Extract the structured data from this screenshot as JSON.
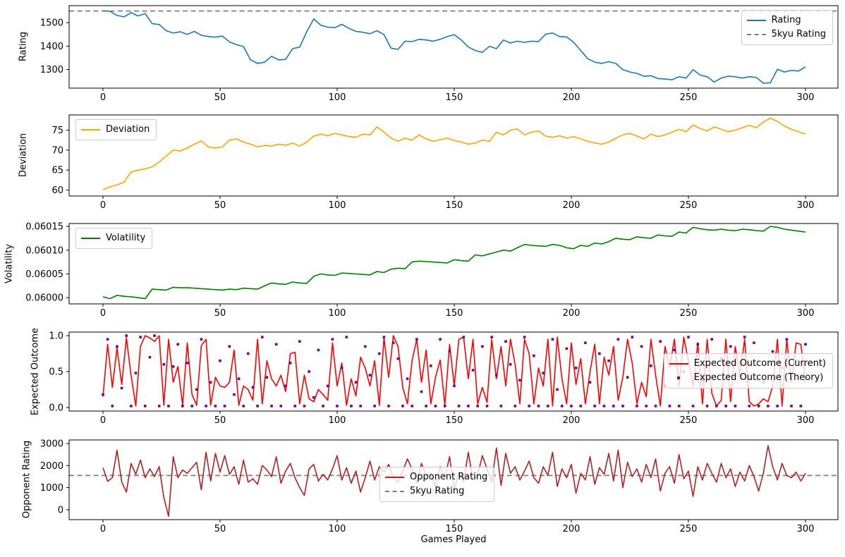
{
  "xlabel": "Games Played",
  "x_axis": {
    "start": 0,
    "end": 300,
    "ticks": [
      0,
      50,
      100,
      150,
      200,
      250,
      300
    ]
  },
  "reference_line": {
    "label": "5kyu Rating",
    "value": 1550,
    "color": "#7f7f7f",
    "style": "dashed"
  },
  "chart_data": [
    {
      "type": "line",
      "ylabel": "Rating",
      "ylim": [
        1220,
        1573
      ],
      "yticks": [
        1300,
        1400,
        1500
      ],
      "ytick_labels": [
        "1300",
        "1400",
        "1500"
      ],
      "x_step": 3,
      "hline": 1550,
      "legend": {
        "position": "top-right",
        "entries": [
          {
            "label": "Rating",
            "color": "#1f77b4",
            "style": "solid"
          },
          {
            "label": "5kyu Rating",
            "color": "#7f7f7f",
            "style": "dashed"
          }
        ]
      },
      "series": [
        {
          "name": "Rating",
          "color": "#1f77b4",
          "style": "solid",
          "values": [
            1551,
            1549,
            1531,
            1525,
            1543,
            1529,
            1539,
            1496,
            1492,
            1466,
            1456,
            1461,
            1450,
            1463,
            1446,
            1441,
            1438,
            1443,
            1418,
            1406,
            1398,
            1341,
            1326,
            1331,
            1356,
            1341,
            1343,
            1389,
            1396,
            1461,
            1516,
            1489,
            1481,
            1479,
            1493,
            1476,
            1463,
            1459,
            1453,
            1466,
            1449,
            1391,
            1386,
            1421,
            1419,
            1429,
            1426,
            1421,
            1429,
            1441,
            1449,
            1426,
            1396,
            1381,
            1373,
            1399,
            1389,
            1426,
            1413,
            1421,
            1416,
            1421,
            1419,
            1451,
            1456,
            1441,
            1439,
            1416,
            1381,
            1346,
            1331,
            1326,
            1333,
            1326,
            1299,
            1289,
            1283,
            1271,
            1273,
            1261,
            1259,
            1256,
            1269,
            1263,
            1299,
            1276,
            1269,
            1246,
            1263,
            1271,
            1269,
            1263,
            1269,
            1266,
            1241,
            1243,
            1301,
            1289,
            1296,
            1293,
            1311
          ]
        }
      ]
    },
    {
      "type": "line",
      "ylabel": "Deviation",
      "ylim": [
        58.5,
        78.8
      ],
      "yticks": [
        60,
        65,
        70,
        75
      ],
      "ytick_labels": [
        "60",
        "65",
        "70",
        "75"
      ],
      "x_step": 3,
      "legend": {
        "position": "top-left",
        "entries": [
          {
            "label": "Deviation",
            "color": "#ffa500",
            "style": "solid"
          }
        ]
      },
      "series": [
        {
          "name": "Deviation",
          "color": "#ffa500",
          "style": "solid",
          "values": [
            60.1,
            60.8,
            61.3,
            62.0,
            64.5,
            65.0,
            65.3,
            65.8,
            67.0,
            68.5,
            70.0,
            69.8,
            70.5,
            71.5,
            72.3,
            70.8,
            70.5,
            70.8,
            72.5,
            72.8,
            72.0,
            71.5,
            70.8,
            71.2,
            71.0,
            71.5,
            71.2,
            71.8,
            71.0,
            72.0,
            73.5,
            74.0,
            73.6,
            74.2,
            73.8,
            73.4,
            73.2,
            74.0,
            73.8,
            75.8,
            74.5,
            73.0,
            72.2,
            73.0,
            72.5,
            73.8,
            72.8,
            72.2,
            72.6,
            73.0,
            72.4,
            72.0,
            71.5,
            71.8,
            72.5,
            72.2,
            74.5,
            73.8,
            75.0,
            75.3,
            73.8,
            74.5,
            74.8,
            73.5,
            73.2,
            73.6,
            73.0,
            73.4,
            72.8,
            72.2,
            71.8,
            71.5,
            72.0,
            73.0,
            73.8,
            74.2,
            73.5,
            72.8,
            74.0,
            73.4,
            73.8,
            74.5,
            75.2,
            74.6,
            76.3,
            75.4,
            74.8,
            75.8,
            75.2,
            74.6,
            75.0,
            75.6,
            76.2,
            75.6,
            77.0,
            78.0,
            77.2,
            76.0,
            75.2,
            74.6,
            74.0
          ]
        }
      ]
    },
    {
      "type": "line",
      "ylabel": "Volatility",
      "ylim": [
        0.059987,
        0.060156
      ],
      "yticks": [
        0.06,
        0.06005,
        0.0601,
        0.06015
      ],
      "ytick_labels": [
        "0.06000",
        "0.06005",
        "0.06010",
        "0.06015"
      ],
      "x_step": 3,
      "legend": {
        "position": "top-left",
        "entries": [
          {
            "label": "Volatility",
            "color": "#008000",
            "style": "solid"
          }
        ]
      },
      "series": [
        {
          "name": "Volatility",
          "color": "#008000",
          "style": "solid",
          "values": [
            0.060002,
            0.059998,
            0.060005,
            0.060003,
            0.060002,
            0.06,
            0.059998,
            0.060018,
            0.060017,
            0.060016,
            0.060022,
            0.060021,
            0.060021,
            0.06002,
            0.060019,
            0.060018,
            0.060017,
            0.060016,
            0.060018,
            0.060017,
            0.06002,
            0.060019,
            0.060018,
            0.060025,
            0.060031,
            0.060029,
            0.060028,
            0.060033,
            0.060031,
            0.06003,
            0.060045,
            0.06005,
            0.060048,
            0.060047,
            0.060052,
            0.060051,
            0.06005,
            0.060049,
            0.060048,
            0.060055,
            0.060053,
            0.06006,
            0.060062,
            0.060061,
            0.060075,
            0.060077,
            0.060076,
            0.060075,
            0.060074,
            0.060073,
            0.06008,
            0.060078,
            0.060077,
            0.06009,
            0.060088,
            0.060092,
            0.060096,
            0.0601,
            0.060098,
            0.060105,
            0.060112,
            0.06011,
            0.060109,
            0.060108,
            0.060112,
            0.06011,
            0.060105,
            0.060103,
            0.06011,
            0.060108,
            0.060115,
            0.060113,
            0.060118,
            0.060125,
            0.060123,
            0.060122,
            0.060128,
            0.060126,
            0.060125,
            0.060132,
            0.06013,
            0.060129,
            0.060138,
            0.060136,
            0.060148,
            0.060145,
            0.060143,
            0.060142,
            0.060144,
            0.060142,
            0.060141,
            0.060144,
            0.060143,
            0.060141,
            0.06014,
            0.06015,
            0.060148,
            0.060144,
            0.060142,
            0.06014,
            0.060138
          ]
        }
      ]
    },
    {
      "type": "line",
      "ylabel": "Expected Outcome",
      "ylim": [
        -0.05,
        1.05
      ],
      "yticks": [
        0.0,
        0.5,
        1.0
      ],
      "ytick_labels": [
        "0.0",
        "0.5",
        "1.0"
      ],
      "x_step": 2,
      "legend": {
        "position": "right-center",
        "entries": [
          {
            "label": "Expected Outcome (Current)",
            "color": "#ff0000",
            "style": "solid"
          },
          {
            "label": "Expected Outcome (Theory)",
            "color": "#800080",
            "style": "dots"
          }
        ]
      },
      "series": [
        {
          "name": "Expected Outcome (Current)",
          "color": "#ff0000",
          "style": "solid",
          "values": [
            0.15,
            0.88,
            0.28,
            0.83,
            0.32,
            0.97,
            0.45,
            0.02,
            0.85,
            1.0,
            0.97,
            0.92,
            1.0,
            0.03,
            0.95,
            0.35,
            0.57,
            0.03,
            0.9,
            0.18,
            0.03,
            0.86,
            0.95,
            0.03,
            0.42,
            0.3,
            0.28,
            0.35,
            0.8,
            0.03,
            0.3,
            0.25,
            0.1,
            0.95,
            0.05,
            0.65,
            0.4,
            0.3,
            0.45,
            0.22,
            0.75,
            0.77,
            0.05,
            0.45,
            0.12,
            0.08,
            0.25,
            0.18,
            0.1,
            0.9,
            0.3,
            0.62,
            0.03,
            0.4,
            0.16,
            0.7,
            0.55,
            0.3,
            0.65,
            0.03,
            0.97,
            0.42,
            1.0,
            0.85,
            0.28,
            0.05,
            0.65,
            0.95,
            0.35,
            0.8,
            0.05,
            0.42,
            0.66,
            0.03,
            0.88,
            0.3,
            0.95,
            0.98,
            0.4,
            0.95,
            0.05,
            0.28,
            0.07,
            0.95,
            0.4,
            0.85,
            0.3,
            0.95,
            0.6,
            0.05,
            0.95,
            0.75,
            0.05,
            0.55,
            0.3,
            0.95,
            0.02,
            0.98,
            0.4,
            0.05,
            0.9,
            0.32,
            0.68,
            0.05,
            0.5,
            0.88,
            0.05,
            0.7,
            0.45,
            0.85,
            0.1,
            0.42,
            0.95,
            0.62,
            0.05,
            0.35,
            0.15,
            0.95,
            0.45,
            0.02,
            0.85,
            0.55,
            0.95,
            0.3,
            0.98,
            0.65,
            0.3,
            0.9,
            0.05,
            0.95,
            0.2,
            0.02,
            0.1,
            0.95,
            0.08,
            0.85,
            0.45,
            0.95,
            0.08,
            0.02,
            0.05,
            0.12,
            0.08,
            0.3,
            0.95,
            0.02,
            0.95,
            0.35,
            0.9,
            0.88,
            0.35
          ]
        },
        {
          "name": "Expected Outcome (Theory)",
          "color": "#800080",
          "style": "squares",
          "values": [
            0.18,
            0.95,
            0.02,
            0.85,
            0.27,
            1.0,
            0.02,
            0.48,
            0.98,
            0.02,
            0.7,
            1.0,
            0.02,
            0.6,
            0.02,
            0.57,
            0.88,
            0.02,
            0.62,
            0.02,
            0.25,
            0.95,
            0.02,
            0.35,
            0.02,
            0.65,
            0.02,
            0.85,
            0.18,
            0.4,
            0.02,
            0.75,
            0.28,
            0.02,
            0.98,
            0.42,
            0.02,
            0.88,
            0.02,
            0.3,
            0.62,
            0.02,
            0.92,
            0.02,
            0.5,
            0.14,
            0.8,
            0.02,
            0.3,
            0.95,
            0.02,
            0.55,
            0.98,
            0.02,
            0.35,
            0.02,
            0.85,
            0.45,
            0.02,
            0.75,
            0.98,
            0.02,
            0.9,
            0.68,
            0.02,
            0.4,
            0.02,
            0.95,
            0.22,
            0.02,
            0.58,
            0.02,
            0.95,
            0.02,
            0.78,
            0.3,
            0.02,
            0.98,
            0.02,
            0.52,
            0.02,
            0.85,
            0.02,
            0.98,
            0.45,
            0.02,
            0.92,
            0.6,
            0.02,
            0.38,
            0.98,
            0.02,
            0.72,
            0.02,
            0.48,
            0.02,
            0.95,
            0.25,
            0.02,
            0.82,
            0.02,
            0.55,
            0.02,
            0.9,
            0.35,
            0.02,
            0.75,
            0.02,
            0.65,
            0.02,
            0.95,
            0.02,
            0.42,
            0.98,
            0.02,
            0.85,
            0.02,
            0.58,
            0.02,
            0.92,
            0.3,
            0.02,
            0.8,
            0.02,
            0.5,
            0.98,
            0.02,
            0.88,
            0.38,
            0.02,
            0.95,
            0.02,
            0.68,
            0.02,
            0.85,
            0.02,
            0.45,
            0.98,
            0.02,
            0.9,
            0.02,
            0.35,
            0.02,
            0.78,
            0.02,
            0.55,
            0.95,
            0.02,
            0.65,
            0.02,
            0.88
          ]
        }
      ]
    },
    {
      "type": "line",
      "ylabel": "Opponent Rating",
      "ylim": [
        -450,
        3160
      ],
      "yticks": [
        0,
        1000,
        2000,
        3000
      ],
      "ytick_labels": [
        "0",
        "1000",
        "2000",
        "3000"
      ],
      "x_step": 2,
      "hline": 1550,
      "legend": {
        "position": "bottom-center",
        "entries": [
          {
            "label": "Opponent Rating",
            "color": "#b22222",
            "style": "solid"
          },
          {
            "label": "5kyu Rating",
            "color": "#7f7f7f",
            "style": "dashed"
          }
        ]
      },
      "series": [
        {
          "name": "Opponent Rating",
          "color": "#b22222",
          "style": "solid",
          "values": [
            1900,
            1280,
            1450,
            2700,
            1250,
            800,
            2100,
            1600,
            2250,
            1450,
            1850,
            1500,
            1950,
            550,
            -300,
            2400,
            1450,
            1800,
            1650,
            1900,
            2150,
            900,
            2600,
            1300,
            2550,
            1700,
            2450,
            1600,
            1950,
            1150,
            2250,
            1250,
            1400,
            1150,
            2000,
            1800,
            1500,
            2400,
            1200,
            1750,
            2100,
            1450,
            1000,
            650,
            1850,
            2050,
            1300,
            1600,
            1350,
            1850,
            2450,
            1350,
            1900,
            1200,
            1750,
            800,
            1450,
            2200,
            1350,
            1950,
            1700,
            2050,
            1450,
            1250,
            1750,
            2300,
            1850,
            1200,
            2100,
            1550,
            1650,
            1050,
            1950,
            1450,
            2400,
            900,
            1700,
            1250,
            2600,
            1350,
            1550,
            2450,
            1850,
            1250,
            2800,
            1100,
            2550,
            1650,
            1950,
            1350,
            1750,
            2200,
            1450,
            1200,
            1950,
            1550,
            2600,
            1050,
            1850,
            1450,
            2050,
            750,
            1650,
            1350,
            2400,
            1150,
            1900,
            1600,
            2550,
            1300,
            2700,
            1000,
            2150,
            1500,
            1850,
            1250,
            2050,
            1450,
            2300,
            850,
            1650,
            1950,
            1200,
            2500,
            1400,
            1750,
            600,
            1950,
            1350,
            2100,
            1650,
            1250,
            2100,
            1450,
            1850,
            1050,
            1700,
            1300,
            2000,
            1500,
            850,
            1650,
            2900,
            1950,
            1350,
            2100,
            1550,
            1450,
            1700,
            1300,
            1650
          ]
        }
      ]
    }
  ]
}
